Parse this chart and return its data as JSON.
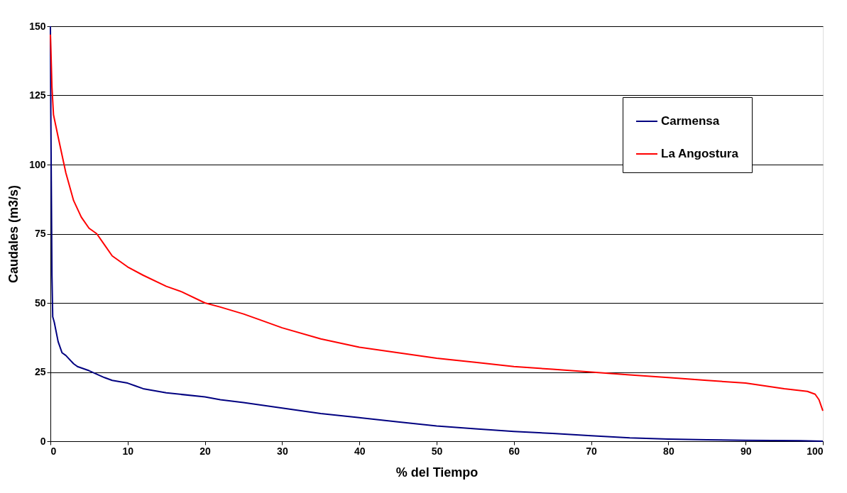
{
  "chart_data": {
    "type": "line",
    "xlabel": "% del Tiempo",
    "ylabel": "Caudales (m3/s)",
    "xlim": [
      0,
      100
    ],
    "xticks": [
      0,
      10,
      20,
      30,
      40,
      50,
      60,
      70,
      80,
      90,
      100
    ],
    "ylim": [
      0,
      150
    ],
    "yticks": [
      0,
      25,
      50,
      75,
      100,
      125,
      150
    ],
    "grid": "y",
    "legend": "top right",
    "marker": "none",
    "line_style": "solid",
    "series": [
      {
        "name": "Carmensa",
        "color": "#000080",
        "x": [
          0,
          0.05,
          0.1,
          0.2,
          0.3,
          0.5,
          1,
          1.5,
          2,
          3,
          3.5,
          5,
          7,
          8,
          10,
          11,
          12,
          15,
          20,
          22,
          25,
          30,
          35,
          40,
          45,
          50,
          55,
          60,
          65,
          70,
          75,
          80,
          85,
          90,
          97,
          100
        ],
        "values": [
          150,
          120,
          100,
          60,
          45,
          43,
          36,
          32,
          31,
          28,
          27,
          25.5,
          23,
          22,
          21,
          20,
          19,
          17.5,
          16,
          15,
          14,
          12,
          10,
          8.5,
          7,
          5.5,
          4.5,
          3.5,
          2.8,
          2,
          1.2,
          0.8,
          0.5,
          0.3,
          0.2,
          0
        ]
      },
      {
        "name": "La Angostura",
        "color": "#ff0000",
        "x": [
          0,
          0.1,
          0.2,
          0.4,
          1,
          2,
          3,
          4,
          5,
          6,
          7,
          8,
          10,
          12,
          15,
          17,
          20,
          22,
          25,
          27,
          30,
          35,
          40,
          45,
          50,
          55,
          60,
          65,
          70,
          75,
          80,
          85,
          90,
          95,
          98,
          99,
          99.5,
          100
        ],
        "values": [
          147,
          138,
          128,
          118,
          110,
          97,
          87,
          81,
          77,
          75,
          71,
          67,
          63,
          60,
          56,
          54,
          50,
          48.5,
          46,
          44,
          41,
          37,
          34,
          32,
          30,
          28.5,
          27,
          26,
          25,
          24,
          23,
          22,
          21,
          19,
          18,
          17,
          15,
          11
        ]
      }
    ]
  }
}
